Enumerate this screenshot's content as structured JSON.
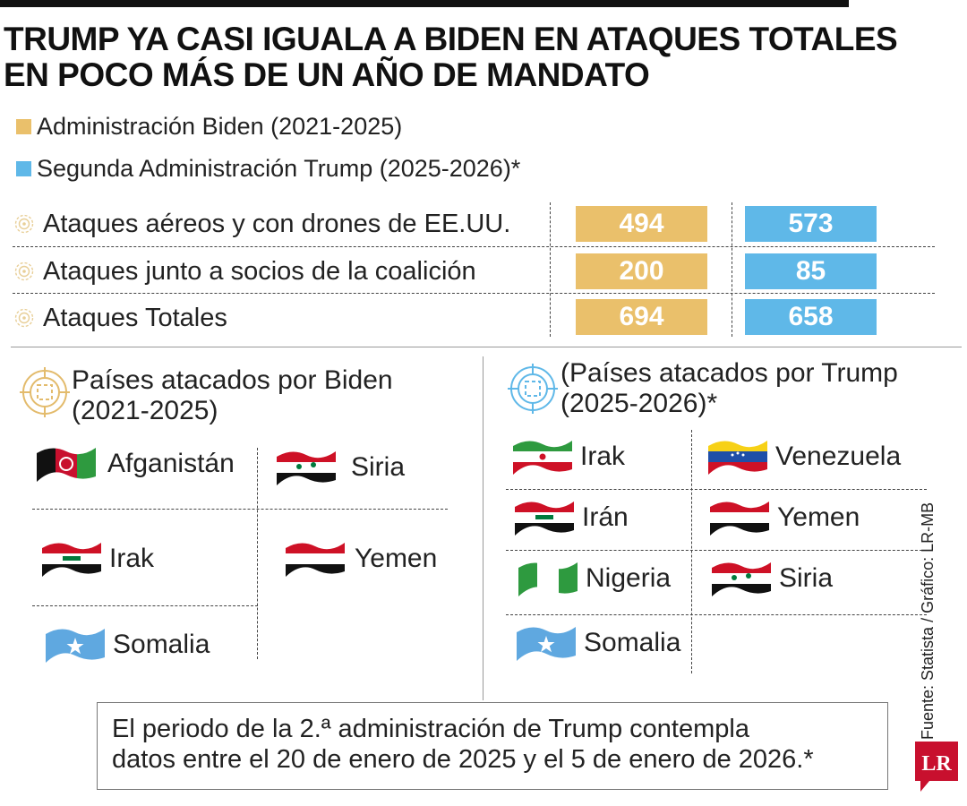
{
  "title": {
    "line1": "TRUMP YA CASI IGUALA A BIDEN EN ATAQUES TOTALES",
    "line2": "EN POCO MÁS DE UN AÑO DE MANDATO"
  },
  "colors": {
    "biden": "#eac06b",
    "trump": "#5fb8e8"
  },
  "chart_data": {
    "type": "table",
    "categories": [
      "Ataques aéreos y con drones de EE.UU.",
      "Ataques junto a socios de la coalición",
      "Ataques Totales"
    ],
    "series": [
      {
        "name": "Administración Biden (2021-2025)",
        "values": [
          494,
          200,
          694
        ]
      },
      {
        "name": "Segunda Administración Trump (2025-2026)*",
        "values": [
          573,
          85,
          658
        ]
      }
    ],
    "legend": "top-left"
  },
  "panels": {
    "biden": {
      "title_line1": "Países atacados por Biden",
      "title_line2": "(2021-2025)",
      "countries": [
        "Afganistán",
        "Siria",
        "Irak",
        "Yemen",
        "Somalia"
      ]
    },
    "trump": {
      "title_line1": "(Países atacados por Trump",
      "title_line2": "(2025-2026)*",
      "countries": [
        "Irak",
        "Venezuela",
        "Irán",
        "Yemen",
        "Nigeria",
        "Siria",
        "Somalia"
      ]
    }
  },
  "note": {
    "line1": "El periodo de la 2.ª administración de Trump contempla",
    "line2": "datos entre el 20 de enero de 2025 y el 5 de enero de 2026.*"
  },
  "source": "Fuente: Statista / Gráfico: LR-MB",
  "logo": "LR"
}
